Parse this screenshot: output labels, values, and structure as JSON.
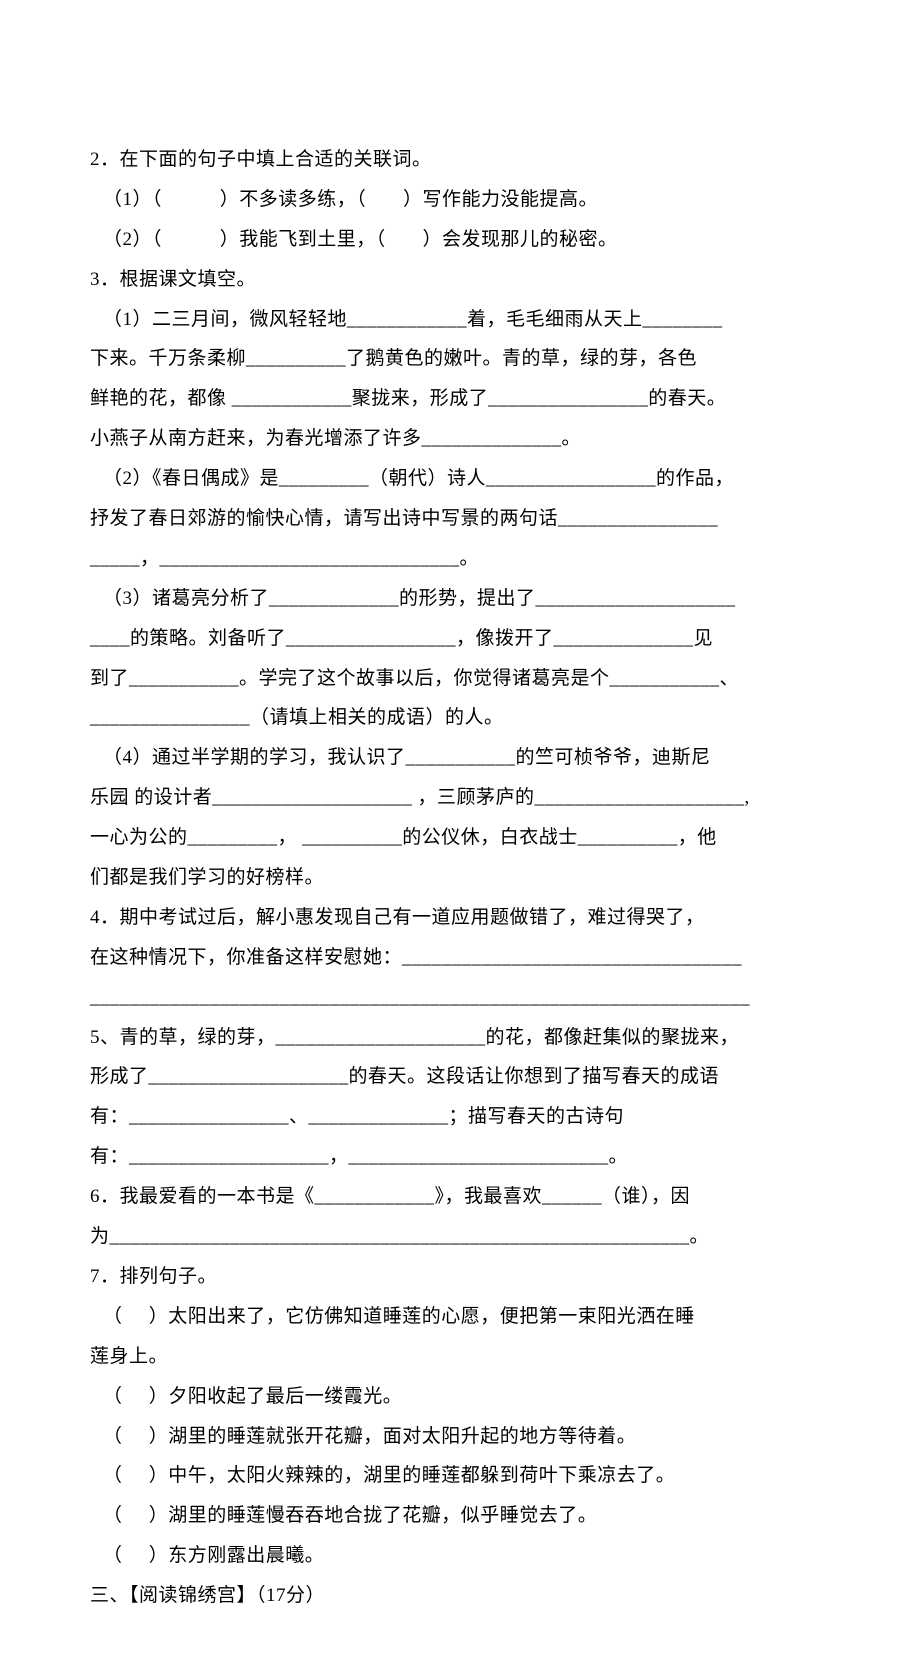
{
  "document": {
    "background_color": "#ffffff",
    "text_color": "#000000",
    "font_family": "SimSun",
    "font_size_pt": 14,
    "line_height": 2.1,
    "lines": [
      {
        "text": "2．在下面的句子中填上合适的关联词。",
        "indent": false
      },
      {
        "text": "（1）（           ）不多读多练，（       ）写作能力没能提高。",
        "indent": true
      },
      {
        "text": "（2）（           ）我能飞到土里，（       ）会发现那儿的秘密。",
        "indent": true
      },
      {
        "text": "3．根据课文填空。",
        "indent": false
      },
      {
        "text": "（1）二三月间，微风轻轻地____________着，毛毛细雨从天上________",
        "indent": true
      },
      {
        "text": "下来。千万条柔柳__________了鹅黄色的嫩叶。青的草，绿的芽，各色",
        "indent": false
      },
      {
        "text": "鲜艳的花，都像 ____________聚拢来，形成了________________的春天。",
        "indent": false
      },
      {
        "text": "小燕子从南方赶来，为春光增添了许多______________。",
        "indent": false
      },
      {
        "text": "（2）《春日偶成》是_________（朝代）诗人_________________的作品，",
        "indent": true
      },
      {
        "text": "抒发了春日郊游的愉快心情，请写出诗中写景的两句话________________",
        "indent": false
      },
      {
        "text": "_____，______________________________。",
        "indent": false
      },
      {
        "text": "（3）诸葛亮分析了_____________的形势，提出了____________________",
        "indent": true
      },
      {
        "text": "____的策略。刘备听了_________________，像拨开了______________见",
        "indent": false
      },
      {
        "text": "到了___________。学完了这个故事以后，你觉得诸葛亮是个___________、",
        "indent": false
      },
      {
        "text": "________________（请填上相关的成语）的人。",
        "indent": false
      },
      {
        "text": "（4）通过半学期的学习，我认识了___________的竺可桢爷爷，迪斯尼",
        "indent": true
      },
      {
        "text": "乐园 的设计者____________________ ，三顾茅庐的_____________________,",
        "indent": false
      },
      {
        "text": "一心为公的_________， __________的公仪休，白衣战士__________，他",
        "indent": false
      },
      {
        "text": "们都是我们学习的好榜样。",
        "indent": false
      },
      {
        "text": "4．期中考试过后，解小惠发现自己有一道应用题做错了，难过得哭了，",
        "indent": false
      },
      {
        "text": "在这种情况下，你准备这样安慰她：__________________________________",
        "indent": false
      },
      {
        "text": "__________________________________________________________________",
        "indent": false
      },
      {
        "text": "5、青的草，绿的芽，_____________________的花，都像赶集似的聚拢来，",
        "indent": false
      },
      {
        "text": "形成了____________________的春天。这段话让你想到了描写春天的成语",
        "indent": false
      },
      {
        "text": "有：________________、______________；描写春天的古诗句",
        "indent": false
      },
      {
        "text": "有：____________________，__________________________。",
        "indent": false
      },
      {
        "text": "6．我最爱看的一本书是《____________》，我最喜欢______（谁），因",
        "indent": false
      },
      {
        "text": "为__________________________________________________________。",
        "indent": false
      },
      {
        "text": "7．排列句子。",
        "indent": false
      },
      {
        "text": "（     ）太阳出来了，它仿佛知道睡莲的心愿，便把第一束阳光洒在睡",
        "indent": true
      },
      {
        "text": "莲身上。",
        "indent": false
      },
      {
        "text": "（     ）夕阳收起了最后一缕霞光。",
        "indent": true
      },
      {
        "text": "（     ）湖里的睡莲就张开花瓣，面对太阳升起的地方等待着。",
        "indent": true
      },
      {
        "text": "（     ）中午，太阳火辣辣的，湖里的睡莲都躲到荷叶下乘凉去了。",
        "indent": true
      },
      {
        "text": "（     ）湖里的睡莲慢吞吞地合拢了花瓣，似乎睡觉去了。",
        "indent": true
      },
      {
        "text": "（     ）东方刚露出晨曦。",
        "indent": true
      },
      {
        "text": "三、【阅读锦绣宫】（17分）",
        "indent": false
      }
    ]
  }
}
